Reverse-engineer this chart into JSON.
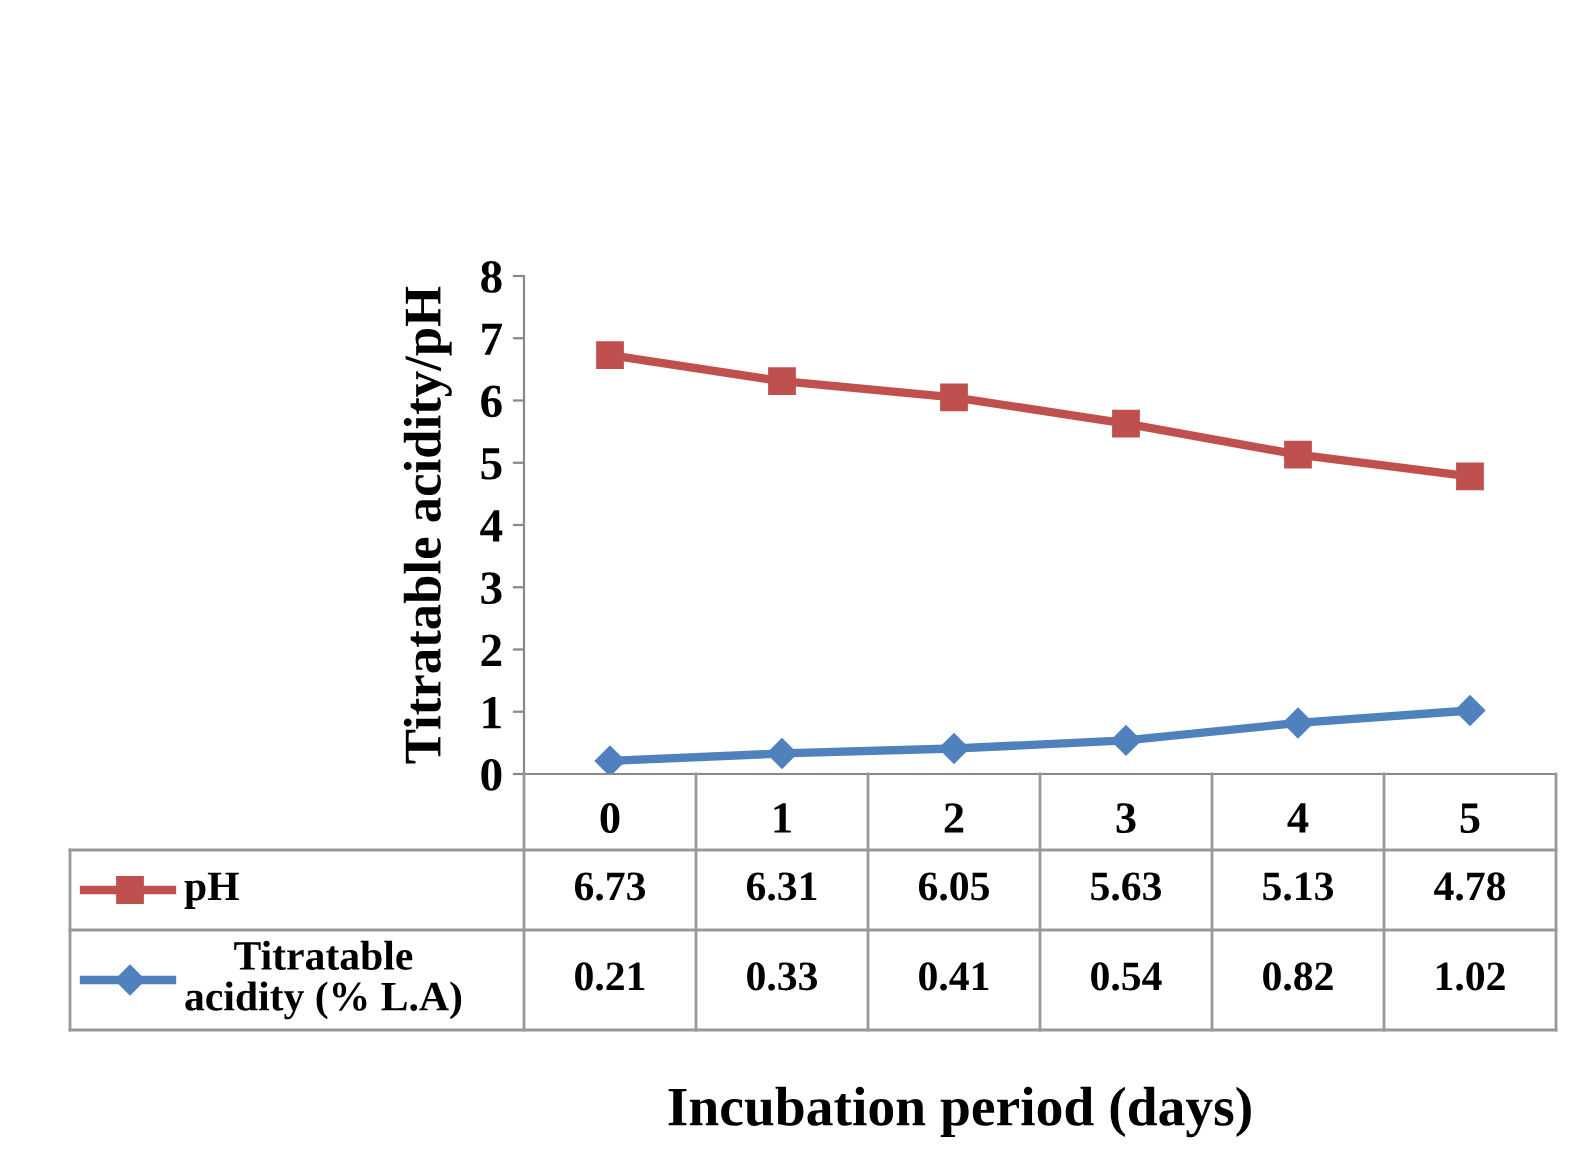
{
  "chart_data": {
    "type": "line",
    "xlabel": "Incubation period (days)",
    "ylabel": "Titratable acidity/pH",
    "categories": [
      "0",
      "1",
      "2",
      "3",
      "4",
      "5"
    ],
    "series": [
      {
        "name": "pH",
        "color": "#c0504d",
        "marker": "square",
        "values": [
          6.73,
          6.31,
          6.05,
          5.63,
          5.13,
          4.78
        ]
      },
      {
        "name": "Titratable acidity (% L.A)",
        "color": "#4f81bd",
        "marker": "diamond",
        "values": [
          0.21,
          0.33,
          0.41,
          0.54,
          0.82,
          1.02
        ]
      }
    ],
    "ylim": [
      0,
      8
    ],
    "yticks": [
      0,
      1,
      2,
      3,
      4,
      5,
      6,
      7,
      8
    ],
    "grid": false,
    "legend": "bottom",
    "data_labels": true
  }
}
